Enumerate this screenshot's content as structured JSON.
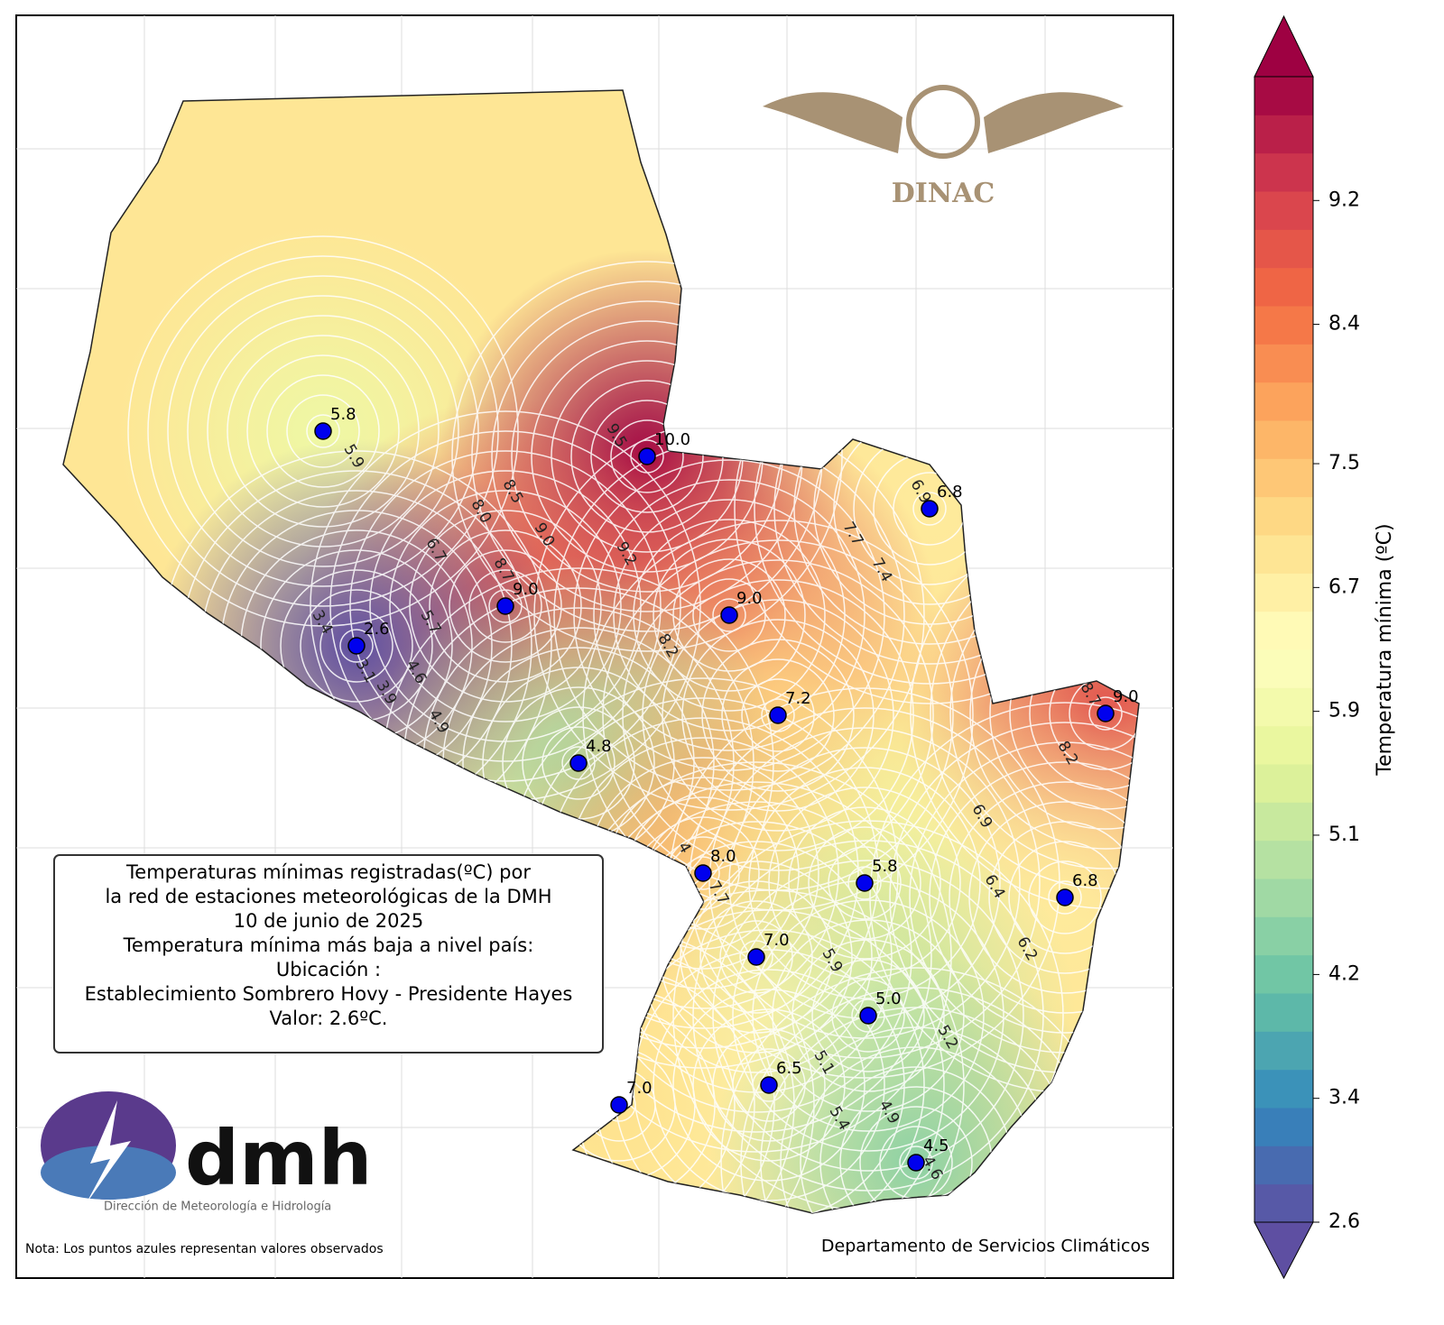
{
  "map": {
    "title_lines": [
      "Temperaturas mínimas registradas(ºC) por",
      "la red de estaciones meteorológicas de la DMH",
      "10 de junio de 2025",
      "Temperatura mínima más baja a nivel país:",
      "Ubicación :",
      "Establecimiento Sombrero Hovy - Presidente Hayes",
      "Valor: 2.6ºC."
    ],
    "stations": {
      "values": [
        5.8,
        10,
        6.8,
        9,
        9,
        2.6,
        9,
        7.2,
        4.8,
        8,
        5.8,
        6.8,
        7,
        5,
        6.5,
        7,
        4.5
      ],
      "value_labels": [
        "5.8",
        "10.0",
        "6.8",
        "9.0",
        "9.0",
        "2.6",
        "9.0",
        "7.2",
        "4.8",
        "8.0",
        "5.8",
        "6.8",
        "7.0",
        "5.0",
        "6.5",
        "7.0",
        "4.5"
      ]
    },
    "contour_labels": [
      "5.9",
      "8.0",
      "8.5",
      "6.7",
      "9.0",
      "9.2",
      "8.7",
      "7.7",
      "7.4",
      "5.7",
      "8.2",
      "3.4",
      "3.1",
      "4.6",
      "3.9",
      "4.9",
      "8.2",
      "8.7",
      "6.9",
      "6.4",
      "6.2",
      "7.7",
      "5.9",
      "5.2",
      "5.1",
      "5.4",
      "4.9",
      "4.6",
      "6.9",
      "9.5",
      "4"
    ],
    "logo_dinac": "DINAC",
    "logo_dmh": "dmh",
    "logo_dmh_sub": "Dirección de Meteorología e Hidrología",
    "note": "Nota: Los puntos azules representan valores observados",
    "department": "Departamento de Servicios Climáticos"
  },
  "colorbar": {
    "label": "Temperatura mínima (ºC)",
    "range": [
      2.6,
      10.0
    ],
    "ticks": [
      2.6,
      3.4,
      4.2,
      5.1,
      5.9,
      6.7,
      7.5,
      8.4,
      9.2
    ],
    "colors": [
      "#5e4fa2",
      "#3288bd",
      "#66c2a5",
      "#abdda4",
      "#e6f598",
      "#ffffbf",
      "#fee08b",
      "#fdae61",
      "#f46d43",
      "#d53e4f",
      "#9e0142"
    ]
  }
}
